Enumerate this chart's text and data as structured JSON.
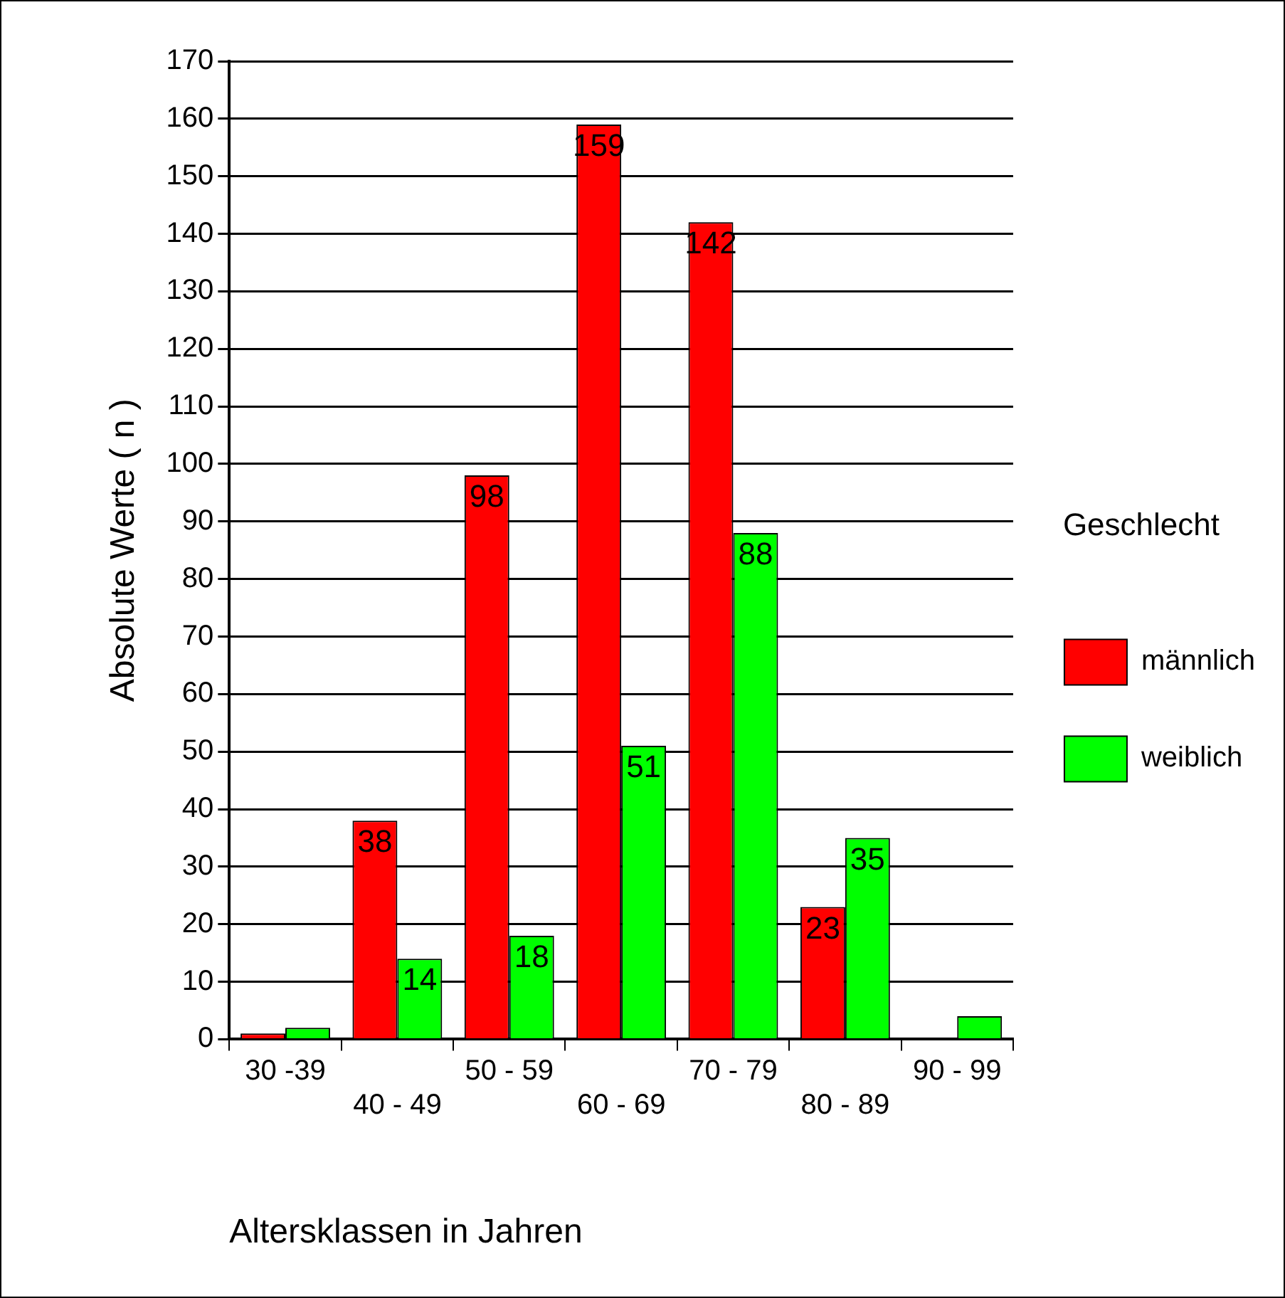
{
  "chart_data": {
    "type": "bar",
    "xlabel": "Altersklassen in Jahren",
    "ylabel": "Absolute Werte ( n )",
    "legend_title": "Geschlecht",
    "categories": [
      "30 -39",
      "40 - 49",
      "50 - 59",
      "60 - 69",
      "70 - 79",
      "80 - 89",
      "90 - 99"
    ],
    "series": [
      {
        "name": "männlich",
        "color": "#ff0000",
        "values": [
          1,
          38,
          98,
          159,
          142,
          23,
          0
        ],
        "value_labels": [
          null,
          "38",
          "98",
          "159",
          "142",
          "23",
          null
        ]
      },
      {
        "name": "weiblich",
        "color": "#00ff00",
        "values": [
          2,
          14,
          18,
          51,
          88,
          35,
          4
        ],
        "value_labels": [
          null,
          "14",
          "18",
          "51",
          "88",
          "35",
          null
        ]
      }
    ],
    "ylim": [
      0,
      170
    ],
    "yticks": [
      0,
      10,
      20,
      30,
      40,
      50,
      60,
      70,
      80,
      90,
      100,
      110,
      120,
      130,
      140,
      150,
      160,
      170
    ],
    "grid": "y",
    "legend": "right"
  }
}
